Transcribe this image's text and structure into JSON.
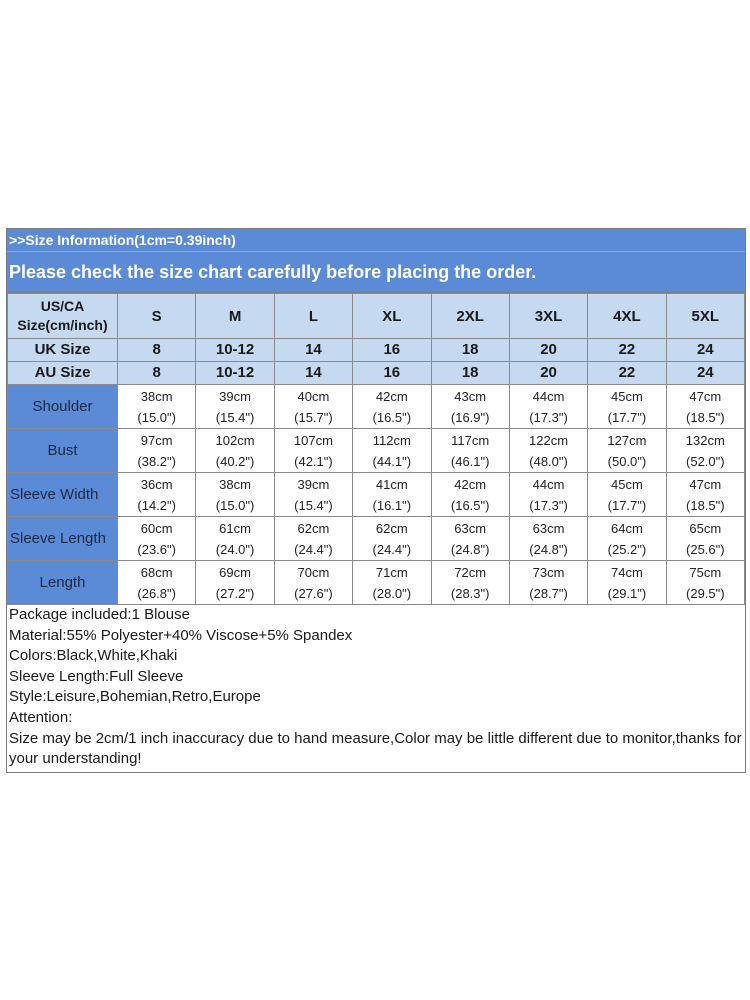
{
  "banner": {
    "info": ">>Size Information(1cm=0.39inch)",
    "warning": "Please check the size chart carefully before placing the order."
  },
  "table": {
    "corner_label": "US/CA Size(cm/inch)",
    "sizes": [
      "S",
      "M",
      "L",
      "XL",
      "2XL",
      "3XL",
      "4XL",
      "5XL"
    ],
    "alt_rows": [
      {
        "label": "UK Size",
        "values": [
          "8",
          "10-12",
          "14",
          "16",
          "18",
          "20",
          "22",
          "24"
        ]
      },
      {
        "label": "AU Size",
        "values": [
          "8",
          "10-12",
          "14",
          "16",
          "18",
          "20",
          "22",
          "24"
        ]
      }
    ],
    "measure_rows": [
      {
        "label": "Shoulder",
        "align": "center",
        "cm": [
          "38cm",
          "39cm",
          "40cm",
          "42cm",
          "43cm",
          "44cm",
          "45cm",
          "47cm"
        ],
        "inch": [
          "(15.0\")",
          "(15.4\")",
          "(15.7\")",
          "(16.5\")",
          "(16.9\")",
          "(17.3\")",
          "(17.7\")",
          "(18.5\")"
        ]
      },
      {
        "label": "Bust",
        "align": "center",
        "cm": [
          "97cm",
          "102cm",
          "107cm",
          "112cm",
          "117cm",
          "122cm",
          "127cm",
          "132cm"
        ],
        "inch": [
          "(38.2\")",
          "(40.2\")",
          "(42.1\")",
          "(44.1\")",
          "(46.1\")",
          "(48.0\")",
          "(50.0\")",
          "(52.0\")"
        ]
      },
      {
        "label": "Sleeve Width",
        "align": "left",
        "cm": [
          "36cm",
          "38cm",
          "39cm",
          "41cm",
          "42cm",
          "44cm",
          "45cm",
          "47cm"
        ],
        "inch": [
          "(14.2\")",
          "(15.0\")",
          "(15.4\")",
          "(16.1\")",
          "(16.5\")",
          "(17.3\")",
          "(17.7\")",
          "(18.5\")"
        ]
      },
      {
        "label": "Sleeve Length",
        "align": "left",
        "cm": [
          "60cm",
          "61cm",
          "62cm",
          "62cm",
          "63cm",
          "63cm",
          "64cm",
          "65cm"
        ],
        "inch": [
          "(23.6\")",
          "(24.0\")",
          "(24.4\")",
          "(24.4\")",
          "(24.8\")",
          "(24.8\")",
          "(25.2\")",
          "(25.6\")"
        ]
      },
      {
        "label": "Length",
        "align": "center",
        "cm": [
          "68cm",
          "69cm",
          "70cm",
          "71cm",
          "72cm",
          "73cm",
          "74cm",
          "75cm"
        ],
        "inch": [
          "(26.8\")",
          "(27.2\")",
          "(27.6\")",
          "(28.0\")",
          "(28.3\")",
          "(28.7\")",
          "(29.1\")",
          "(29.5\")"
        ]
      }
    ]
  },
  "notes": [
    "Package included:1 Blouse",
    "Material:55% Polyester+40% Viscose+5% Spandex",
    "Colors:Black,White,Khaki",
    "Sleeve Length:Full Sleeve",
    "Style:Leisure,Bohemian,Retro,Europe",
    "Attention:",
    "Size may be 2cm/1 inch inaccuracy due to hand measure,Color may be little different due to monitor,thanks for your understanding!"
  ],
  "colors": {
    "banner_blue": "#5b8bd6",
    "header_light_blue": "#c5d9f1"
  }
}
